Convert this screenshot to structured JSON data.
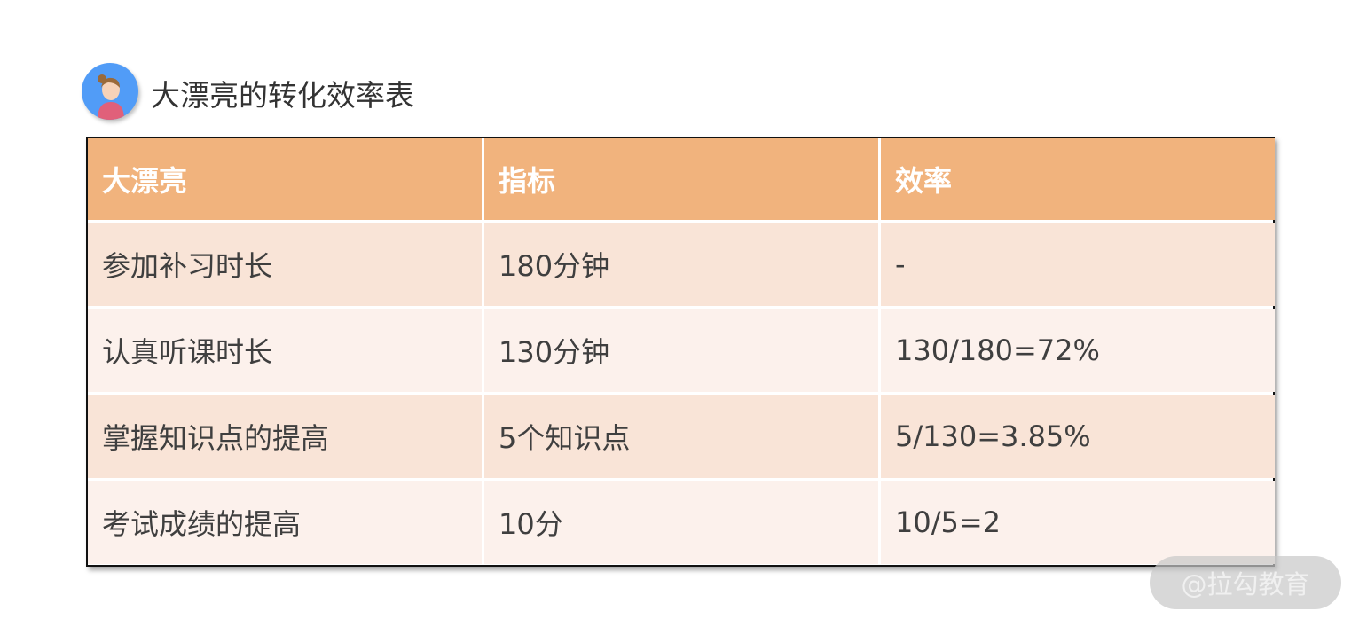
{
  "title": "大漂亮的转化效率表",
  "table": {
    "headers": [
      "大漂亮",
      "指标",
      "效率"
    ],
    "rows": [
      [
        "参加补习时长",
        "180分钟",
        "-"
      ],
      [
        "认真听课时长",
        "130分钟",
        "130/180=72%"
      ],
      [
        "掌握知识点的提高",
        "5个知识点",
        "5/130=3.85%"
      ],
      [
        "考试成绩的提高",
        "10分",
        "10/5=2"
      ]
    ]
  },
  "watermark": "@拉勾教育",
  "colors": {
    "header": "#f1b37d",
    "row_odd": "#f9e4d7",
    "row_even": "#fcf1ec",
    "avatar_bg": "#519cf7"
  }
}
